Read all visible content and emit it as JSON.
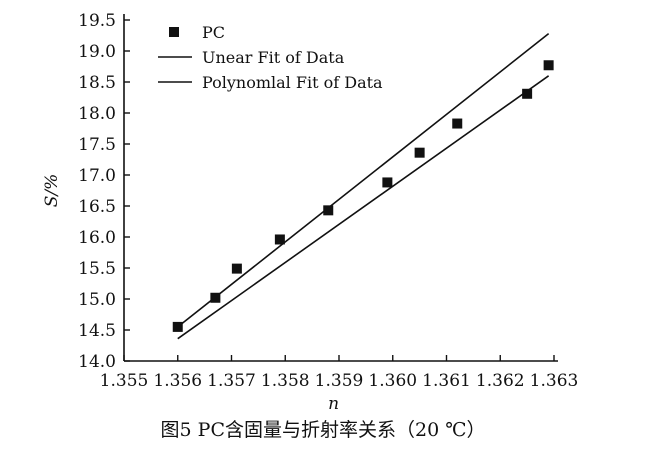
{
  "chart_data": {
    "type": "scatter",
    "xlabel": "n",
    "ylabel": "S/%",
    "xlim": [
      1.355,
      1.363
    ],
    "ylim": [
      14.0,
      19.5
    ],
    "xticks": [
      "1.355",
      "1.356",
      "1.357",
      "1.358",
      "1.359",
      "1.360",
      "1.361",
      "1.362",
      "1.363"
    ],
    "yticks": [
      "14.0",
      "14.5",
      "15.0",
      "15.5",
      "16.0",
      "16.5",
      "17.0",
      "17.5",
      "18.0",
      "18.5",
      "19.0",
      "19.5"
    ],
    "grid": false,
    "legend_position": "top-left",
    "series": [
      {
        "name": "PC",
        "kind": "points",
        "x": [
          1.356,
          1.3567,
          1.3571,
          1.3579,
          1.3588,
          1.3599,
          1.3605,
          1.3612,
          1.3625,
          1.3629
        ],
        "y": [
          14.55,
          15.02,
          15.49,
          15.96,
          16.43,
          16.88,
          17.36,
          17.83,
          18.31,
          18.77
        ]
      },
      {
        "name": "Unear Fit of Data",
        "kind": "line",
        "x": [
          1.356,
          1.3629
        ],
        "y": [
          14.55,
          19.28
        ]
      },
      {
        "name": "Polynomlal Fit of Data",
        "kind": "line",
        "x": [
          1.356,
          1.3629
        ],
        "y": [
          14.36,
          18.6
        ]
      }
    ]
  },
  "caption": "图5   PC含固量与折射率关系（20 ℃）"
}
